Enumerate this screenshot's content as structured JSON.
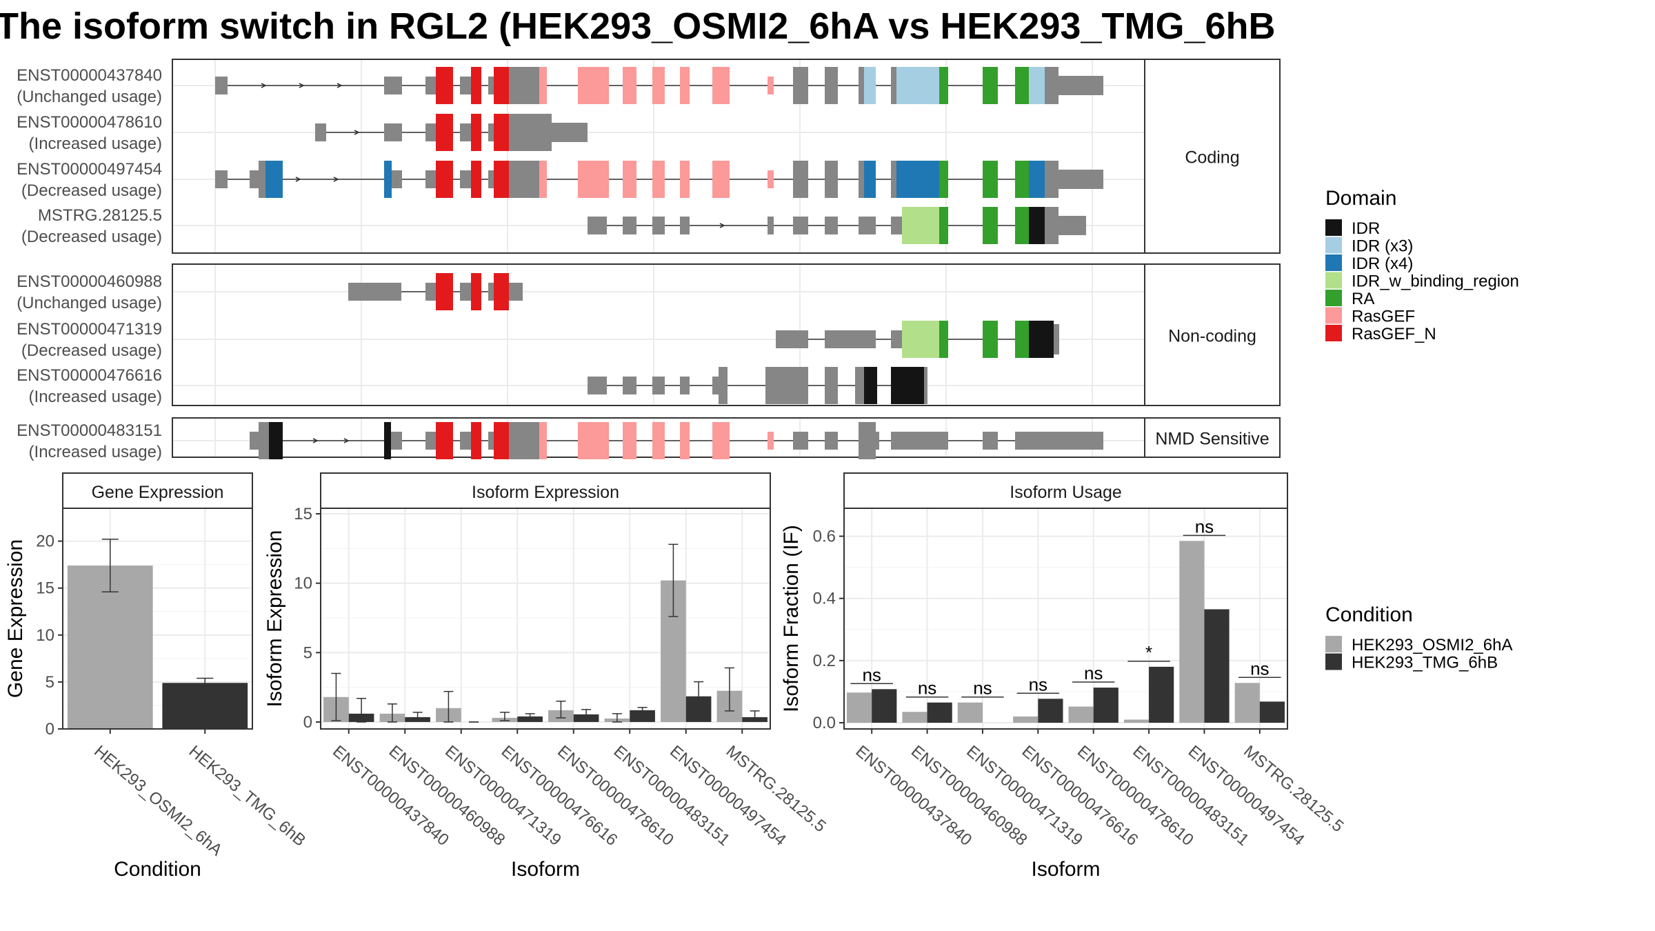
{
  "title": "The isoform switch in RGL2 (HEK293_OSMI2_6hA vs HEK293_TMG_6hB",
  "domain_legend": {
    "title": "Domain",
    "items": [
      {
        "name": "IDR",
        "color": "#141414"
      },
      {
        "name": "IDR (x3)",
        "color": "#a6cee3"
      },
      {
        "name": "IDR (x4)",
        "color": "#1f78b4"
      },
      {
        "name": "IDR_w_binding_region",
        "color": "#b2df8a"
      },
      {
        "name": "RA",
        "color": "#33a02c"
      },
      {
        "name": "RasGEF",
        "color": "#fb9a99"
      },
      {
        "name": "RasGEF_N",
        "color": "#e31a1c"
      }
    ]
  },
  "condition_legend": {
    "title": "Condition",
    "items": [
      {
        "name": "HEK293_OSMI2_6hA",
        "color": "#a8a8a8"
      },
      {
        "name": "HEK293_TMG_6hB",
        "color": "#333333"
      }
    ]
  },
  "structure": {
    "groups": [
      {
        "label": "Coding",
        "isoforms": [
          {
            "id": "ENST00000437840",
            "usage": "(Unchanged usage)"
          },
          {
            "id": "ENST00000478610",
            "usage": "(Increased usage)"
          },
          {
            "id": "ENST00000497454",
            "usage": "(Decreased usage)"
          },
          {
            "id": "MSTRG.28125.5",
            "usage": "(Decreased usage)"
          }
        ]
      },
      {
        "label": "Non-coding",
        "isoforms": [
          {
            "id": "ENST00000460988",
            "usage": "(Unchanged usage)"
          },
          {
            "id": "ENST00000471319",
            "usage": "(Decreased usage)"
          },
          {
            "id": "ENST00000476616",
            "usage": "(Increased usage)"
          }
        ]
      },
      {
        "label": "NMD Sensitive",
        "isoforms": [
          {
            "id": "ENST00000483151",
            "usage": "(Increased usage)"
          }
        ]
      }
    ]
  },
  "chart_data": [
    {
      "type": "bar",
      "panel": "Gene Expression",
      "xlabel": "Condition",
      "ylabel": "Gene Expression",
      "ylim": [
        0,
        23.5
      ],
      "yticks": [
        0,
        5,
        10,
        15,
        20
      ],
      "categories": [
        "HEK293_OSMI2_6hA",
        "HEK293_TMG_6hB"
      ],
      "values": [
        17.4,
        4.9
      ],
      "errors": [
        [
          14.6,
          20.2
        ],
        [
          4.5,
          5.4
        ]
      ]
    },
    {
      "type": "bar",
      "panel": "Isoform Expression",
      "xlabel": "Isoform",
      "ylabel": "Isoform Expression",
      "ylim": [
        -0.5,
        15.4
      ],
      "yticks": [
        0,
        5,
        10,
        15
      ],
      "categories": [
        "ENST00000437840",
        "ENST00000460988",
        "ENST00000471319",
        "ENST00000476616",
        "ENST00000478610",
        "ENST00000483151",
        "ENST00000497454",
        "MSTRG.28125.5"
      ],
      "series": [
        {
          "name": "HEK293_OSMI2_6hA",
          "values": [
            1.8,
            0.6,
            1.0,
            0.3,
            0.85,
            0.25,
            10.2,
            2.25
          ],
          "errors": [
            [
              0.1,
              3.5
            ],
            [
              0.0,
              1.3
            ],
            [
              0.0,
              2.2
            ],
            [
              0.1,
              0.7
            ],
            [
              0.3,
              1.5
            ],
            [
              0.0,
              0.6
            ],
            [
              7.6,
              12.8
            ],
            [
              0.8,
              3.9
            ]
          ]
        },
        {
          "name": "HEK293_TMG_6hB",
          "values": [
            0.6,
            0.35,
            0.0,
            0.4,
            0.55,
            0.85,
            1.85,
            0.35
          ],
          "errors": [
            [
              0.0,
              1.7
            ],
            [
              0.1,
              0.7
            ],
            [
              0.0,
              0.0
            ],
            [
              0.2,
              0.6
            ],
            [
              0.3,
              0.9
            ],
            [
              0.7,
              1.05
            ],
            [
              0.8,
              2.9
            ],
            [
              0.1,
              0.8
            ]
          ]
        }
      ]
    },
    {
      "type": "bar",
      "panel": "Isoform Usage",
      "xlabel": "Isoform",
      "ylabel": "Isoform Fraction (IF)",
      "ylim": [
        -0.02,
        0.69
      ],
      "yticks": [
        0.0,
        0.2,
        0.4,
        0.6
      ],
      "ytick_labels": [
        "0.0",
        "0.2",
        "0.4",
        "0.6"
      ],
      "categories": [
        "ENST00000437840",
        "ENST00000460988",
        "ENST00000471319",
        "ENST00000476616",
        "ENST00000478610",
        "ENST00000483151",
        "ENST00000497454",
        "MSTRG.28125.5"
      ],
      "series": [
        {
          "name": "HEK293_OSMI2_6hA",
          "values": [
            0.097,
            0.035,
            0.065,
            0.02,
            0.052,
            0.01,
            0.585,
            0.128
          ]
        },
        {
          "name": "HEK293_TMG_6hB",
          "values": [
            0.108,
            0.065,
            0.0,
            0.077,
            0.113,
            0.18,
            0.365,
            0.068
          ]
        }
      ],
      "significance": [
        "ns",
        "ns",
        "ns",
        "ns",
        "ns",
        "*",
        "ns",
        "ns"
      ]
    }
  ]
}
